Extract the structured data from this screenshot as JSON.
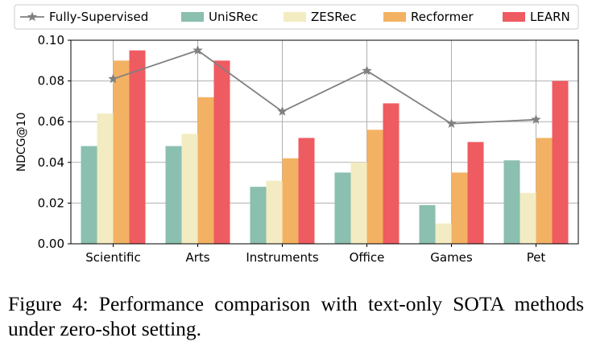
{
  "chart_data": {
    "type": "bar",
    "categories": [
      "Scientific",
      "Arts",
      "Instruments",
      "Office",
      "Games",
      "Pet"
    ],
    "series": [
      {
        "name": "UniSRec",
        "color": "#8bbfb0",
        "values": [
          0.048,
          0.048,
          0.028,
          0.035,
          0.019,
          0.041
        ]
      },
      {
        "name": "ZESRec",
        "color": "#f3ecc2",
        "values": [
          0.064,
          0.054,
          0.031,
          0.04,
          0.01,
          0.025
        ]
      },
      {
        "name": "Recformer",
        "color": "#f3b263",
        "values": [
          0.09,
          0.072,
          0.042,
          0.056,
          0.035,
          0.052
        ]
      },
      {
        "name": "LEARN",
        "color": "#ee5b61",
        "values": [
          0.095,
          0.09,
          0.052,
          0.069,
          0.05,
          0.08
        ]
      }
    ],
    "line_series": {
      "name": "Fully-Supervised",
      "color": "#808080",
      "marker": "star",
      "values": [
        0.081,
        0.095,
        0.065,
        0.085,
        0.059,
        0.061
      ]
    },
    "ylabel": "NDCG@10",
    "ylim": [
      0,
      0.1
    ],
    "yticks": [
      "0.00",
      "0.02",
      "0.04",
      "0.06",
      "0.08",
      "0.10"
    ],
    "grid": true,
    "legend": "top"
  },
  "caption": "Figure 4: Performance comparison with text-only SOTA methods under zero-shot setting."
}
